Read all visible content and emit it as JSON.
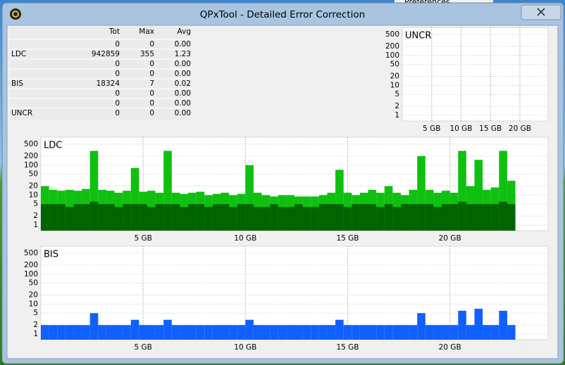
{
  "window": {
    "title": "QPxTool - Detailed Error Correction",
    "background_text": "Preferences"
  },
  "table": {
    "columns": [
      null,
      "Tot",
      "Max",
      "Avg"
    ],
    "rows": [
      [
        null,
        "0",
        "0",
        "0.00"
      ],
      [
        "LDC",
        "942859",
        "355",
        "1.23"
      ],
      [
        null,
        "0",
        "0",
        "0.00"
      ],
      [
        null,
        "0",
        "0",
        "0.00"
      ],
      [
        "BIS",
        "18324",
        "7",
        "0.02"
      ],
      [
        null,
        "0",
        "0",
        "0.00"
      ],
      [
        null,
        "0",
        "0",
        "0.00"
      ],
      [
        "UNCR",
        "0",
        "0",
        "0.00"
      ]
    ]
  },
  "charts": [
    {
      "type": "bar",
      "label": "UNCR",
      "log_scale": true,
      "grid": true,
      "ylim": [
        0.65,
        860
      ],
      "yticks": [
        1,
        2,
        5,
        10,
        20,
        50,
        100,
        200,
        500
      ],
      "xlim": [
        0,
        24.8
      ],
      "xticks": [
        {
          "value": 5,
          "label": "5 GB"
        },
        {
          "value": 10,
          "label": "10 GB"
        },
        {
          "value": 15,
          "label": "15 GB"
        },
        {
          "value": 20,
          "label": "20 GB"
        }
      ],
      "x": [],
      "series": []
    },
    {
      "type": "bar",
      "label": "LDC",
      "log_scale": true,
      "grid": true,
      "ylim": [
        0.65,
        860
      ],
      "yticks": [
        1,
        2,
        5,
        10,
        20,
        50,
        100,
        200,
        500
      ],
      "xlim": [
        0,
        24.8
      ],
      "xticks": [
        {
          "value": 5,
          "label": "5 GB"
        },
        {
          "value": 10,
          "label": "10 GB"
        },
        {
          "value": 15,
          "label": "15 GB"
        },
        {
          "value": 20,
          "label": "20 GB"
        }
      ],
      "x": [
        0.2,
        0.6,
        1.0,
        1.4,
        1.8,
        2.2,
        2.6,
        3.0,
        3.4,
        3.8,
        4.2,
        4.6,
        5.0,
        5.4,
        5.8,
        6.2,
        6.6,
        7.0,
        7.4,
        7.8,
        8.2,
        8.6,
        9.0,
        9.4,
        9.8,
        10.2,
        10.6,
        11.0,
        11.4,
        11.8,
        12.2,
        12.6,
        13.0,
        13.4,
        13.8,
        14.2,
        14.6,
        15.0,
        15.4,
        15.8,
        16.2,
        16.6,
        17.0,
        17.4,
        17.8,
        18.2,
        18.6,
        19.0,
        19.4,
        19.8,
        20.2,
        20.6,
        21.0,
        21.4,
        21.8,
        22.2,
        22.6,
        23.0
      ],
      "series": [
        {
          "color": "#10c010",
          "values": [
            20,
            15,
            14,
            15,
            14,
            16,
            300,
            15,
            14,
            12,
            14,
            80,
            13,
            14,
            12,
            300,
            12,
            11,
            12,
            13,
            10,
            11,
            12,
            10,
            11,
            100,
            12,
            10,
            9,
            10,
            10,
            9,
            9,
            9,
            10,
            12,
            70,
            12,
            10,
            12,
            15,
            12,
            20,
            12,
            10,
            15,
            200,
            15,
            12,
            14,
            12,
            300,
            20,
            150,
            15,
            18,
            300,
            30
          ]
        },
        {
          "color": "#006400",
          "values": [
            5,
            5,
            5,
            4,
            5,
            5,
            6,
            5,
            5,
            4,
            5,
            5,
            5,
            4,
            5,
            5,
            5,
            4,
            5,
            5,
            4,
            5,
            5,
            4,
            5,
            5,
            4,
            4,
            5,
            4,
            4,
            5,
            4,
            4,
            5,
            5,
            5,
            4,
            5,
            5,
            5,
            4,
            5,
            4,
            5,
            5,
            5,
            5,
            4,
            5,
            5,
            6,
            5,
            5,
            5,
            5,
            6,
            5
          ]
        }
      ]
    },
    {
      "type": "bar",
      "label": "BIS",
      "log_scale": true,
      "grid": true,
      "ylim": [
        0.65,
        860
      ],
      "yticks": [
        1,
        2,
        5,
        10,
        20,
        50,
        100,
        200,
        500
      ],
      "xlim": [
        0,
        24.8
      ],
      "xticks": [
        {
          "value": 5,
          "label": "5 GB"
        },
        {
          "value": 10,
          "label": "10 GB"
        },
        {
          "value": 15,
          "label": "15 GB"
        },
        {
          "value": 20,
          "label": "20 GB"
        }
      ],
      "x": [
        0.2,
        0.6,
        1.0,
        1.4,
        1.8,
        2.2,
        2.6,
        3.0,
        3.4,
        3.8,
        4.2,
        4.6,
        5.0,
        5.4,
        5.8,
        6.2,
        6.6,
        7.0,
        7.4,
        7.8,
        8.2,
        8.6,
        9.0,
        9.4,
        9.8,
        10.2,
        10.6,
        11.0,
        11.4,
        11.8,
        12.2,
        12.6,
        13.0,
        13.4,
        13.8,
        14.2,
        14.6,
        15.0,
        15.4,
        15.8,
        16.2,
        16.6,
        17.0,
        17.4,
        17.8,
        18.2,
        18.6,
        19.0,
        19.4,
        19.8,
        20.2,
        20.6,
        21.0,
        21.4,
        21.8,
        22.2,
        22.6,
        23.0
      ],
      "series": [
        {
          "color": "#1060ff",
          "values": [
            2,
            2,
            2,
            2,
            2,
            2,
            5,
            2,
            2,
            2,
            2,
            3,
            2,
            2,
            2,
            3,
            2,
            2,
            2,
            2,
            2,
            2,
            2,
            2,
            2,
            3,
            2,
            2,
            2,
            2,
            2,
            2,
            2,
            2,
            2,
            2,
            3,
            2,
            2,
            2,
            2,
            2,
            2,
            2,
            2,
            2,
            5,
            2,
            2,
            2,
            2,
            6,
            2,
            7,
            2,
            2,
            6,
            2
          ]
        }
      ]
    }
  ]
}
